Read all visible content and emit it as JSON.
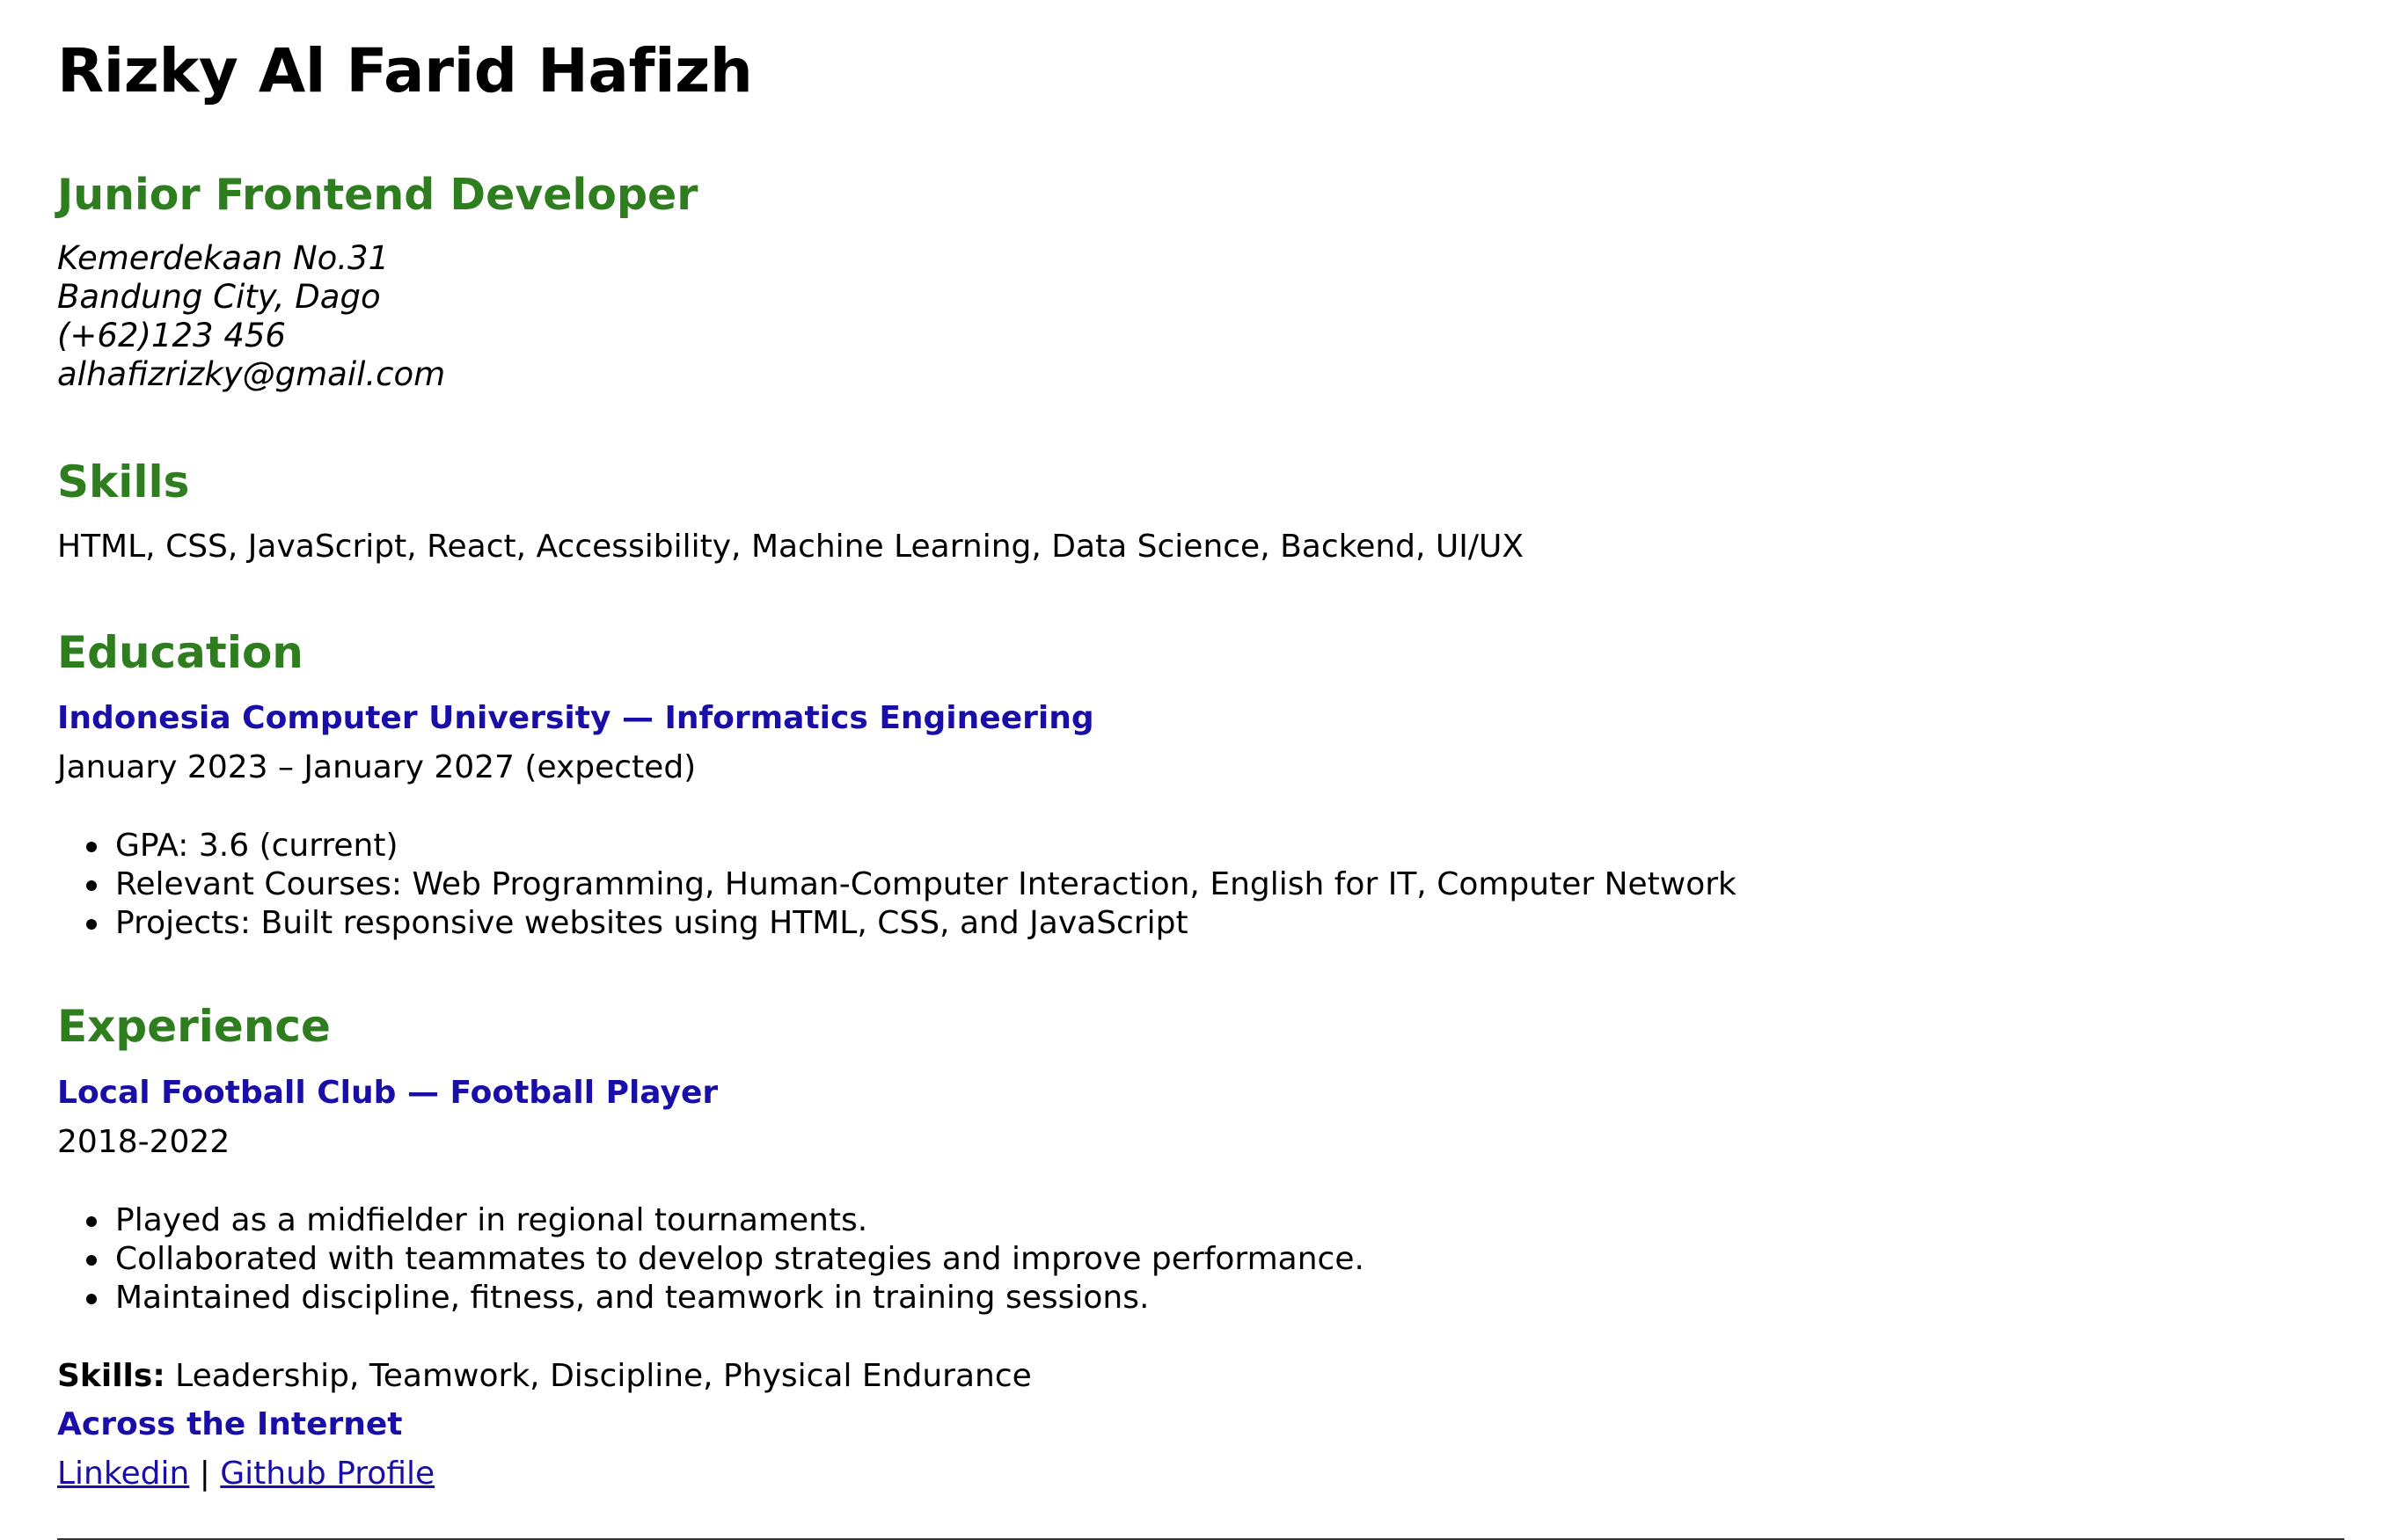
{
  "header": {
    "name": "Rizky Al Farid Hafizh",
    "role": "Junior Frontend Developer"
  },
  "contact": {
    "address_line1": "Kemerdekaan No.31",
    "address_line2": "Bandung City, Dago",
    "phone": "(+62)123 456",
    "email": "alhafizrizky@gmail.com"
  },
  "skills": {
    "title": "Skills",
    "text": "HTML, CSS, JavaScript, React, Accessibility, Machine Learning, Data Science, Backend, UI/UX"
  },
  "education": {
    "title": "Education",
    "organization": "Indonesia Computer University — Informatics Engineering",
    "dates": "January 2023 – January 2027 (expected)",
    "items": [
      "GPA: 3.6 (current)",
      "Relevant Courses: Web Programming, Human-Computer Interaction, English for IT, Computer Network",
      "Projects: Built responsive websites using HTML, CSS, and JavaScript"
    ]
  },
  "experience": {
    "title": "Experience",
    "organization": "Local Football Club — Football Player",
    "dates": "2018-2022",
    "items": [
      "Played as a midfielder in regional tournaments.",
      "Collaborated with teammates to develop strategies and improve performance.",
      "Maintained discipline, fitness, and teamwork in training sessions."
    ],
    "skills_label": "Skills:",
    "skills_text": " Leadership, Teamwork, Discipline, Physical Endurance"
  },
  "internet": {
    "title": "Across the Internet",
    "linkedin_label": "Linkedin",
    "separator": " | ",
    "github_label": "Github Profile"
  },
  "colors": {
    "heading_green": "#2e7d1f",
    "title_blue": "#1a0ea8",
    "text": "#000000"
  }
}
